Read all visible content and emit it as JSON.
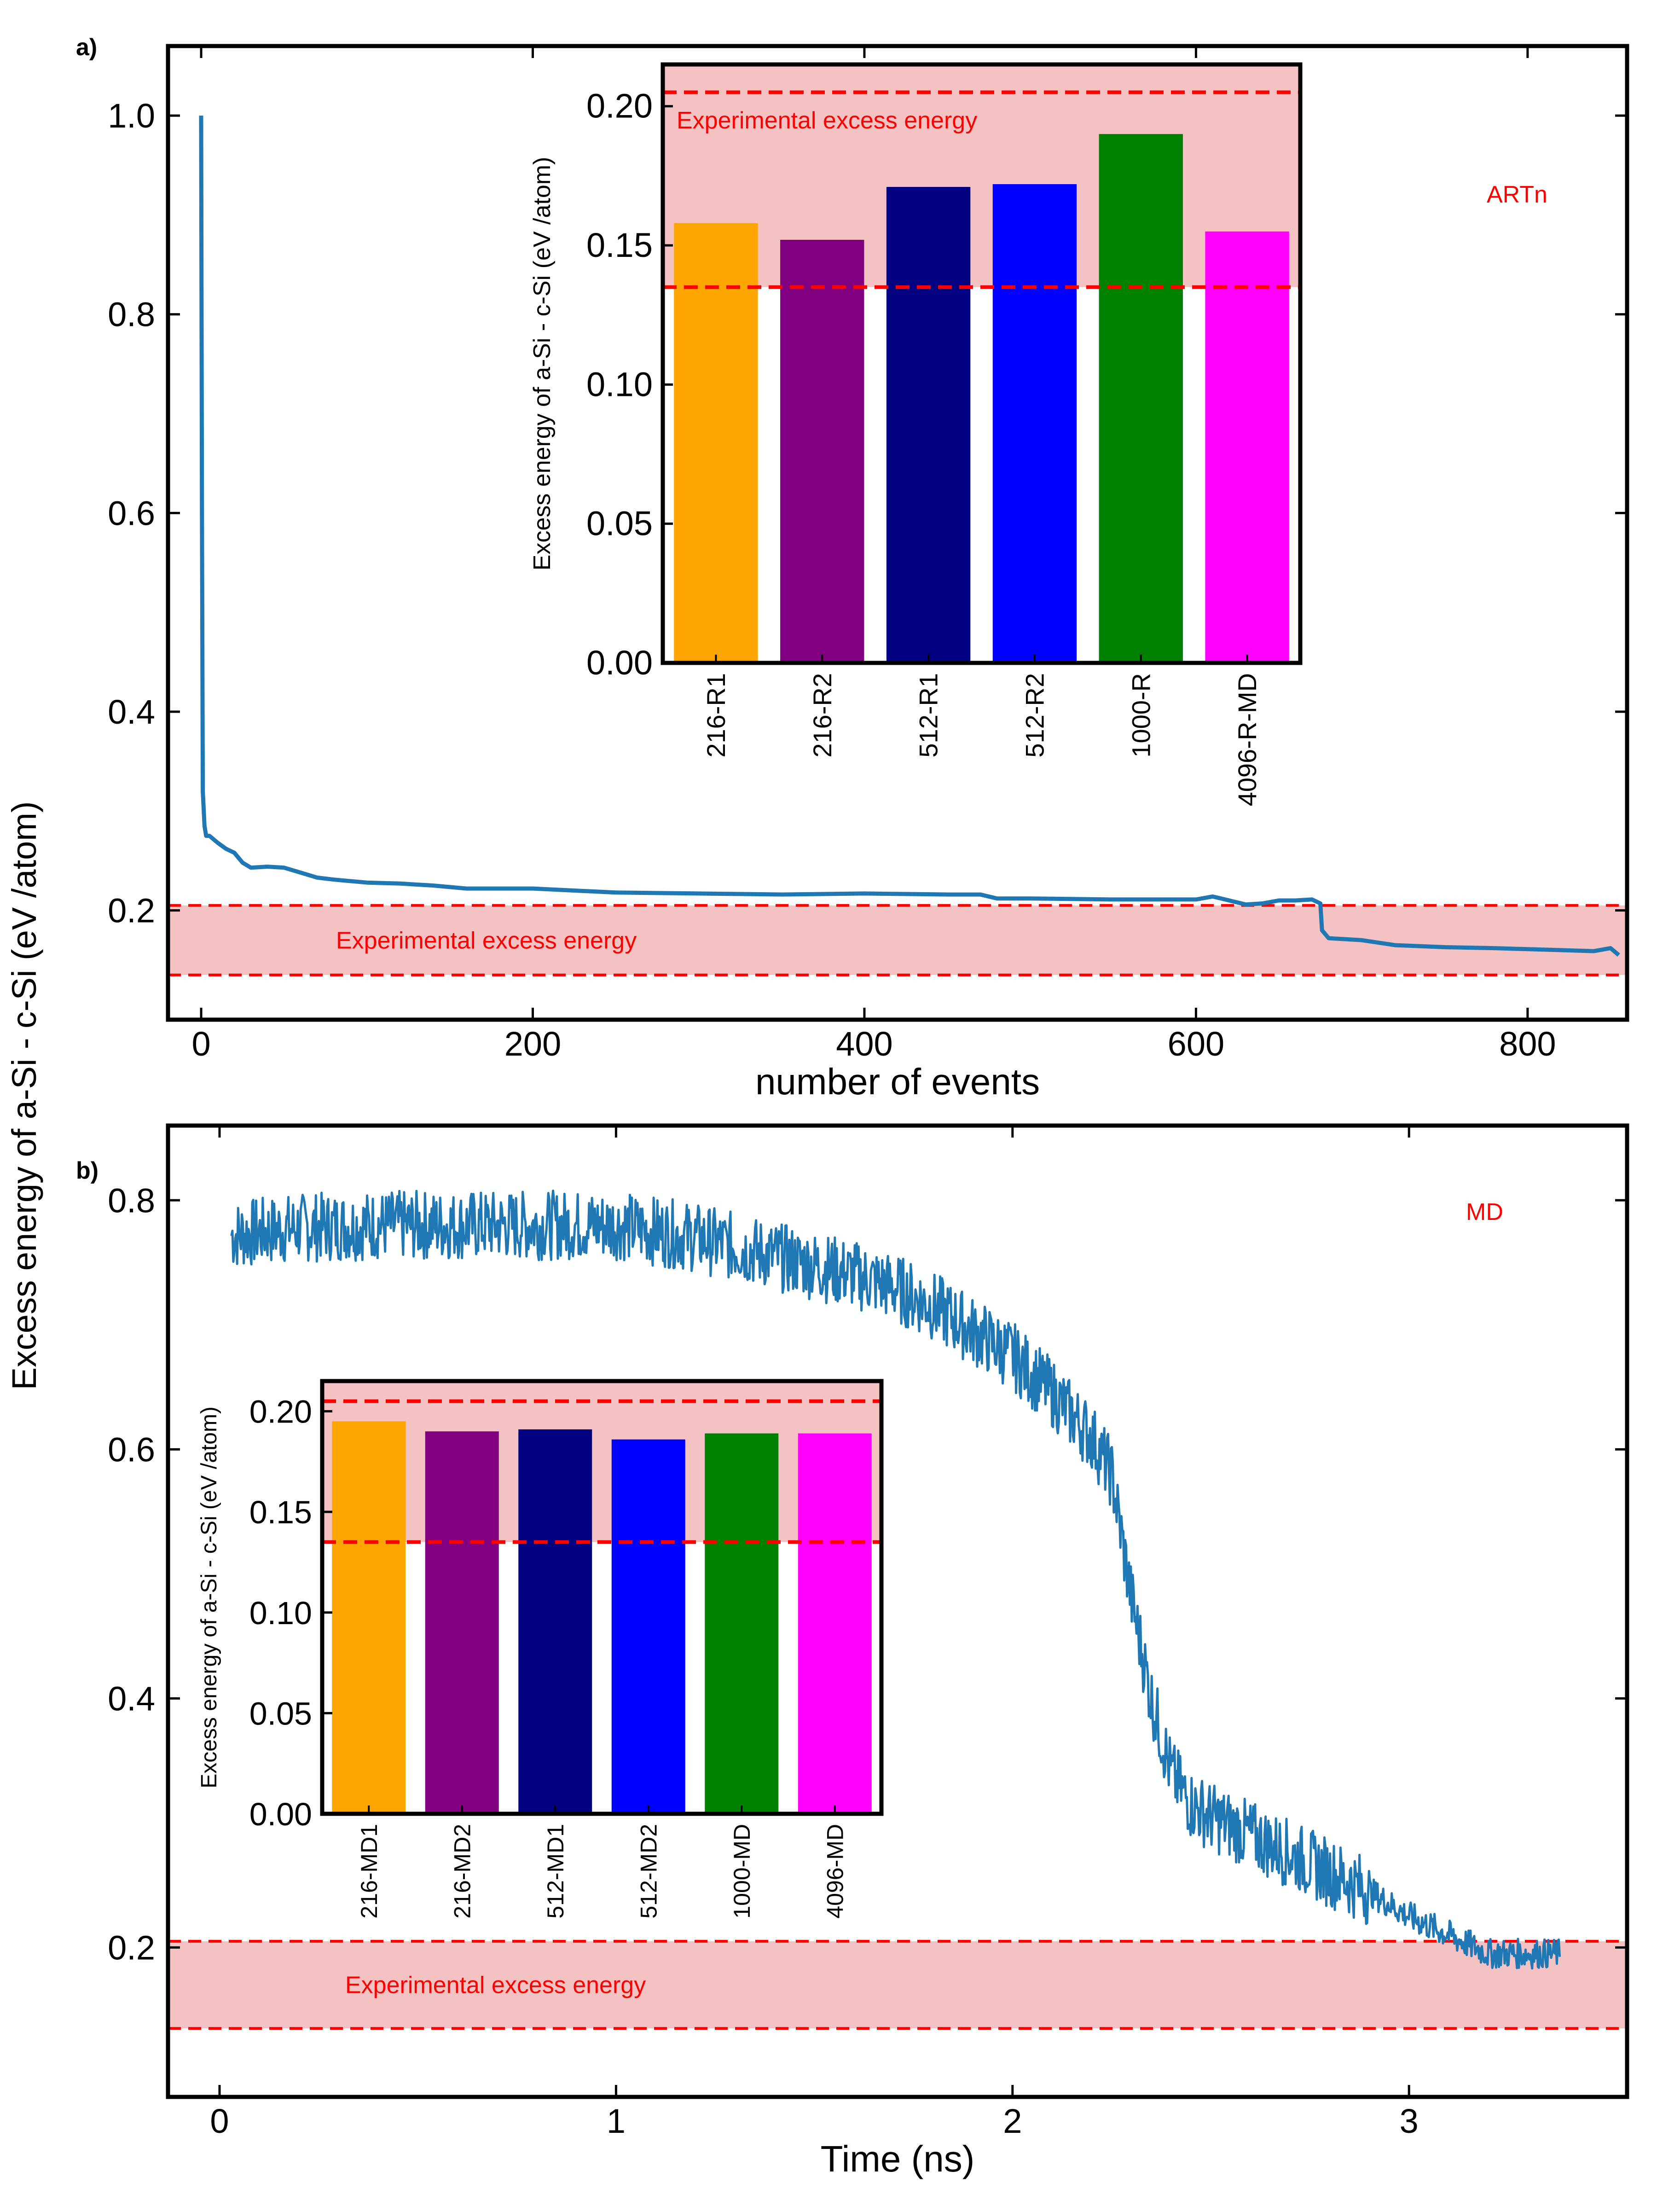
{
  "figure": {
    "shared_ylabel": "Excess energy of a-Si - c-Si (eV /atom)"
  },
  "colors": {
    "line": "#1f77b4",
    "band_fill": "#f4c2c2",
    "band_line": "#ff0000",
    "annotation": "#ff0000",
    "axis": "#000000"
  },
  "chart_data": [
    {
      "id": "a-main",
      "panel_label": "a)",
      "type": "line",
      "title": "",
      "xlabel": "number of events",
      "ylabel": "Excess energy of a-Si - c-Si (eV /atom)",
      "xlim": [
        -20,
        860
      ],
      "ylim": [
        0.09,
        1.07
      ],
      "xticks": [
        0,
        200,
        400,
        600,
        800
      ],
      "yticks": [
        0.2,
        0.4,
        0.6,
        0.8,
        1.0
      ],
      "method_label": "ARTn",
      "band": {
        "low": 0.135,
        "high": 0.205,
        "label": "Experimental excess energy"
      },
      "series": [
        {
          "name": "ARTn",
          "x": [
            0,
            0.5,
            1,
            2,
            3,
            5,
            10,
            15,
            20,
            25,
            30,
            40,
            50,
            60,
            70,
            80,
            100,
            120,
            140,
            160,
            180,
            200,
            250,
            300,
            350,
            400,
            450,
            470,
            480,
            500,
            550,
            600,
            610,
            620,
            630,
            640,
            650,
            660,
            670,
            675,
            676,
            680,
            700,
            720,
            750,
            780,
            800,
            820,
            840,
            850,
            855
          ],
          "y": [
            1.0,
            0.6,
            0.32,
            0.285,
            0.275,
            0.275,
            0.268,
            0.262,
            0.258,
            0.248,
            0.243,
            0.244,
            0.243,
            0.238,
            0.233,
            0.231,
            0.228,
            0.227,
            0.225,
            0.222,
            0.222,
            0.222,
            0.218,
            0.217,
            0.216,
            0.217,
            0.216,
            0.216,
            0.212,
            0.212,
            0.211,
            0.211,
            0.214,
            0.21,
            0.206,
            0.207,
            0.21,
            0.21,
            0.211,
            0.207,
            0.18,
            0.172,
            0.17,
            0.165,
            0.163,
            0.162,
            0.161,
            0.16,
            0.159,
            0.162,
            0.155
          ]
        }
      ]
    },
    {
      "id": "a-inset",
      "type": "bar",
      "title": "",
      "xlabel": "",
      "ylabel": "Excess energy of a-Si - c-Si (eV /atom)",
      "ylim": [
        0,
        0.215
      ],
      "yticks": [
        "0.00",
        "0.05",
        "0.10",
        "0.15",
        "0.20"
      ],
      "band": {
        "low": 0.135,
        "high": 0.205,
        "label": "Experimental excess energy"
      },
      "categories": [
        "216-R1",
        "216-R2",
        "512-R1",
        "512-R2",
        "1000-R",
        "4096-R-MD"
      ],
      "values": [
        0.158,
        0.152,
        0.171,
        0.172,
        0.19,
        0.155
      ],
      "bar_colors": [
        "#ffa500",
        "#800080",
        "#000080",
        "#0000ff",
        "#008000",
        "#ff00ff"
      ]
    },
    {
      "id": "b-main",
      "panel_label": "b)",
      "type": "line",
      "title": "",
      "xlabel": "Time (ns)",
      "ylabel": "Excess energy of a-Si - c-Si (eV /atom)",
      "xlim": [
        -0.13,
        3.55
      ],
      "ylim": [
        0.08,
        0.86
      ],
      "xticks": [
        0,
        1,
        2,
        3
      ],
      "yticks": [
        0.2,
        0.4,
        0.6,
        0.8
      ],
      "method_label": "MD",
      "band": {
        "low": 0.135,
        "high": 0.205,
        "label": "Experimental excess energy"
      },
      "series": [
        {
          "name": "MD",
          "x": [
            0.03,
            0.2,
            0.4,
            0.6,
            0.8,
            1.0,
            1.2,
            1.4,
            1.6,
            1.7,
            1.8,
            1.9,
            2.0,
            2.1,
            2.2,
            2.25,
            2.3,
            2.35,
            2.4,
            2.45,
            2.5,
            2.6,
            2.7,
            2.8,
            2.9,
            3.0,
            3.1,
            3.2,
            3.3,
            3.38
          ],
          "y": [
            0.772,
            0.778,
            0.78,
            0.78,
            0.78,
            0.78,
            0.77,
            0.755,
            0.74,
            0.73,
            0.715,
            0.695,
            0.675,
            0.645,
            0.61,
            0.58,
            0.48,
            0.4,
            0.34,
            0.315,
            0.305,
            0.29,
            0.275,
            0.26,
            0.245,
            0.225,
            0.21,
            0.195,
            0.195,
            0.195
          ]
        }
      ]
    },
    {
      "id": "b-inset",
      "type": "bar",
      "title": "",
      "xlabel": "",
      "ylabel": "Excess energy of a-Si - c-Si (eV /atom)",
      "ylim": [
        0,
        0.215
      ],
      "yticks": [
        "0.00",
        "0.05",
        "0.10",
        "0.15",
        "0.20"
      ],
      "band": {
        "low": 0.135,
        "high": 0.205,
        "label": ""
      },
      "categories": [
        "216-MD1",
        "216-MD2",
        "512-MD1",
        "512-MD2",
        "1000-MD",
        "4096-MD"
      ],
      "values": [
        0.195,
        0.19,
        0.191,
        0.186,
        0.189,
        0.189
      ],
      "bar_colors": [
        "#ffa500",
        "#800080",
        "#000080",
        "#0000ff",
        "#008000",
        "#ff00ff"
      ]
    }
  ]
}
